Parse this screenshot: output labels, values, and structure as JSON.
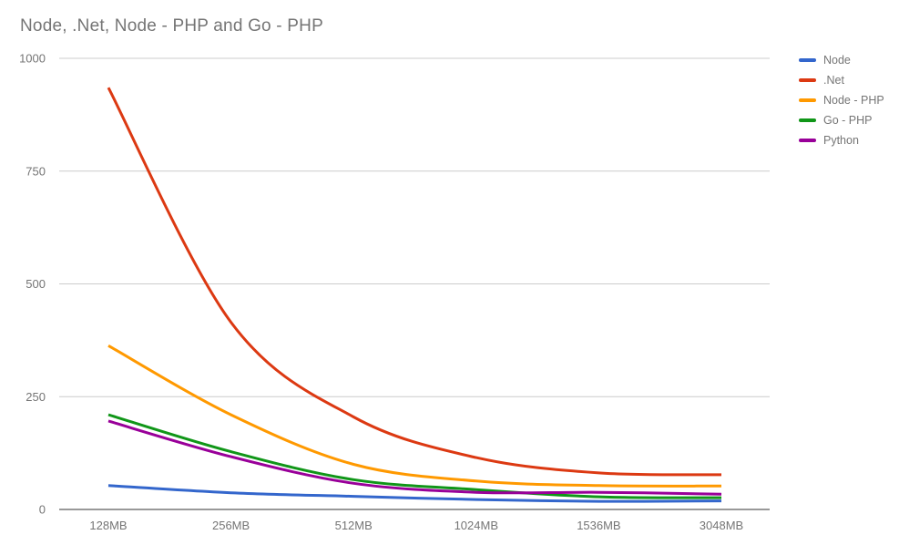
{
  "chart_data": {
    "type": "line",
    "title": "Node, .Net, Node - PHP and Go - PHP",
    "categories": [
      "128MB",
      "256MB",
      "512MB",
      "1024MB",
      "1536MB",
      "3048MB"
    ],
    "y_ticks": [
      0,
      250,
      500,
      750,
      1000
    ],
    "ylim": [
      0,
      1000
    ],
    "xlabel": "",
    "ylabel": "",
    "grid": true,
    "legend_position": "right",
    "series": [
      {
        "name": "Node",
        "color": "#3366CC",
        "values": [
          53,
          37,
          29,
          22,
          18,
          19
        ]
      },
      {
        "name": ".Net",
        "color": "#DC3912",
        "values": [
          935,
          415,
          205,
          115,
          81,
          77
        ]
      },
      {
        "name": "Node - PHP",
        "color": "#FF9900",
        "values": [
          363,
          210,
          100,
          63,
          53,
          52
        ]
      },
      {
        "name": "Go - PHP",
        "color": "#109618",
        "values": [
          210,
          128,
          66,
          44,
          28,
          26
        ]
      },
      {
        "name": "Python",
        "color": "#990099",
        "values": [
          196,
          117,
          58,
          38,
          38,
          34
        ]
      }
    ],
    "colors": {
      "gridline": "#cccccc",
      "baseline": "#333333",
      "tick_text": "#757575",
      "title_text": "#757575",
      "background": "#ffffff"
    }
  }
}
